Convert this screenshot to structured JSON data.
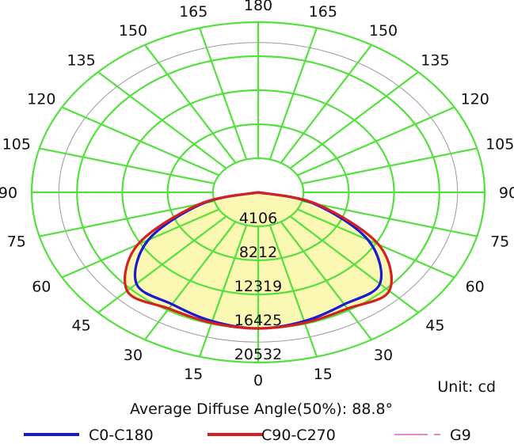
{
  "chart_data": {
    "type": "polar",
    "unit_label": "Unit: cd",
    "average_angle_label": "Average Diffuse Angle(50%): 88.8°",
    "angle_labels_left": [
      "0",
      "15",
      "30",
      "45",
      "60",
      "75",
      "90",
      "105",
      "120",
      "135",
      "150",
      "165",
      "180"
    ],
    "angle_labels_right": [
      "15",
      "30",
      "45",
      "60",
      "75",
      "90",
      "105",
      "120",
      "135",
      "150",
      "165"
    ],
    "angle_label_values_left": [
      0,
      15,
      30,
      45,
      60,
      75,
      90,
      105,
      120,
      135,
      150,
      165,
      180
    ],
    "angle_label_values_right": [
      15,
      30,
      45,
      60,
      75,
      90,
      105,
      120,
      135,
      150,
      165
    ],
    "radial_ticks": [
      "4106",
      "8212",
      "12319",
      "16425",
      "20532"
    ],
    "radial_tick_values": [
      4106,
      8212,
      12319,
      16425,
      20532
    ],
    "r_max": 20532,
    "grid": true,
    "legend_position": "bottom",
    "colors": {
      "grid": "#55e03f",
      "c0": "#1a1ad0",
      "c90": "#d62020",
      "g9": "#e88ad0",
      "fill": "#fbf8b4",
      "minor_ring": "#9a9a9a"
    },
    "series": [
      {
        "name": "C0-C180",
        "color": "#1a1ad0",
        "angles": [
          0,
          15,
          30,
          45,
          60,
          75,
          90
        ],
        "values": [
          16425,
          16100,
          15600,
          15600,
          11500,
          5200,
          0
        ]
      },
      {
        "name": "C90-C270",
        "color": "#d62020",
        "angles": [
          0,
          15,
          30,
          45,
          60,
          75,
          90
        ],
        "values": [
          16425,
          16300,
          16200,
          16800,
          12600,
          5500,
          0
        ]
      },
      {
        "name": "G9",
        "color": "#e88ad0",
        "angles": [],
        "values": []
      }
    ]
  }
}
